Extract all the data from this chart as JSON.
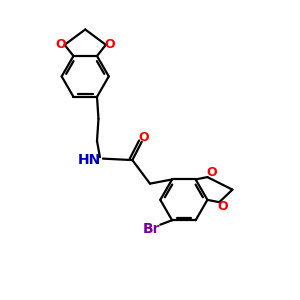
{
  "bg_color": "#ffffff",
  "bond_color": "#000000",
  "n_color": "#0000bb",
  "o_color": "#ff0000",
  "br_color": "#7b00a0",
  "line_width": 1.6,
  "figsize": [
    3.0,
    3.0
  ],
  "dpi": 100,
  "xlim": [
    0,
    10
  ],
  "ylim": [
    0,
    10
  ]
}
